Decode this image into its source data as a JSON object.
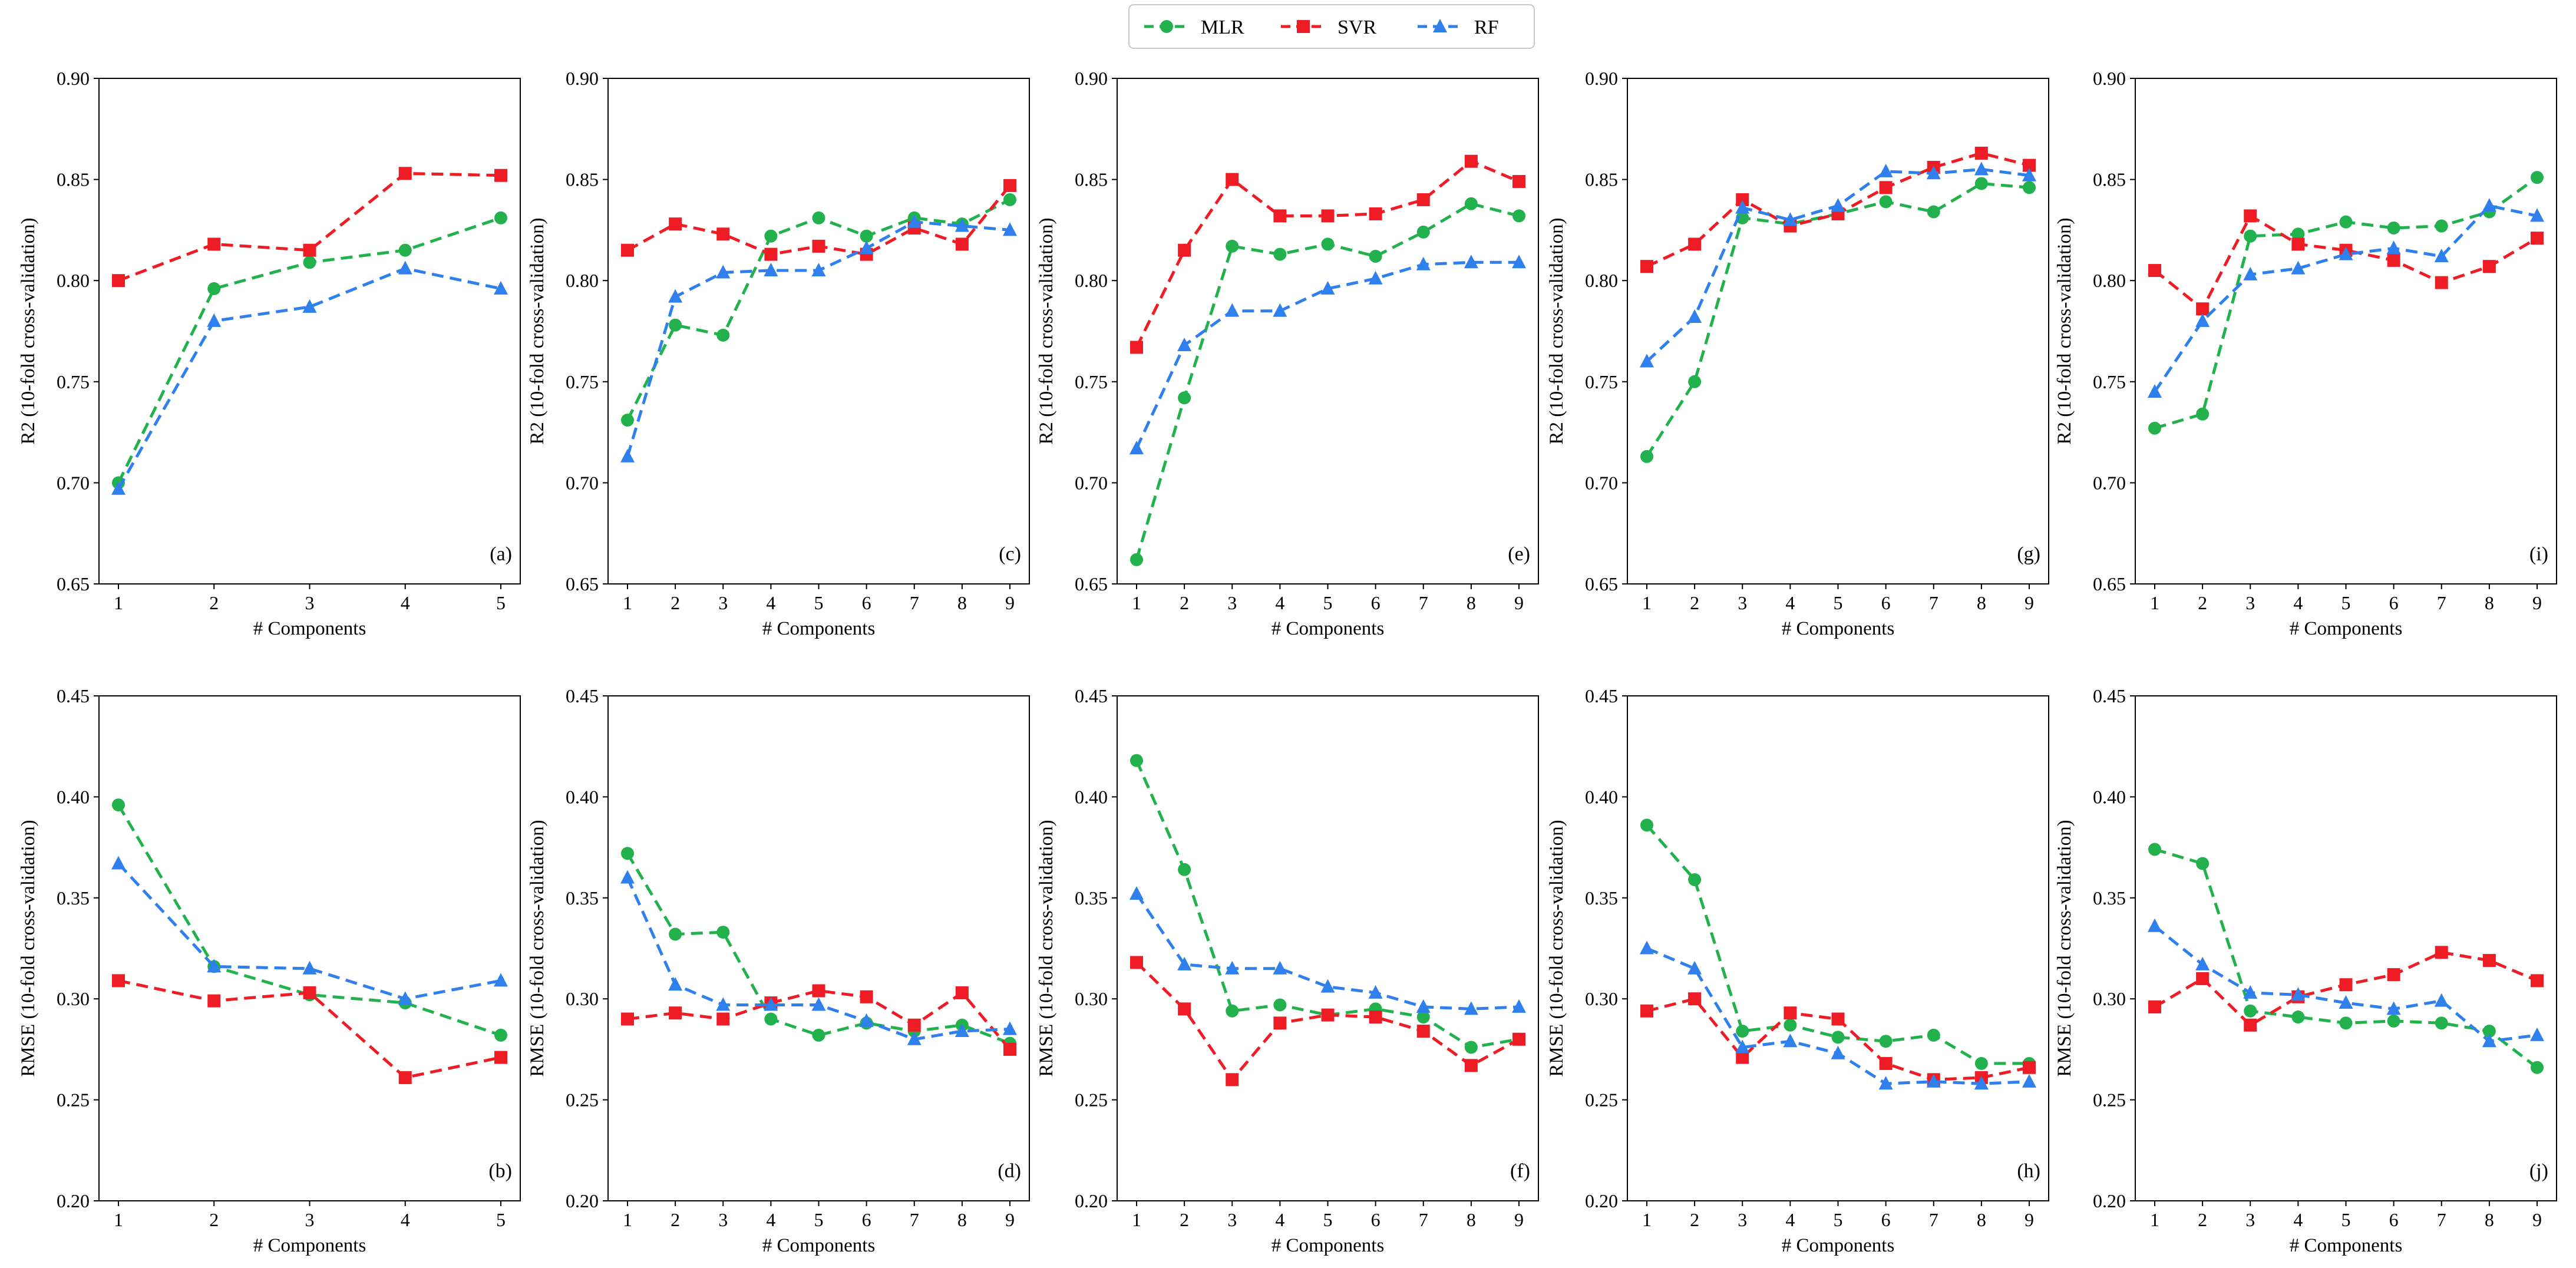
{
  "legend": [
    {
      "name": "MLR",
      "color": "#22b14c",
      "marker": "circle"
    },
    {
      "name": "SVR",
      "color": "#ee1c24",
      "marker": "square"
    },
    {
      "name": "RF",
      "color": "#2f80ed",
      "marker": "triangle"
    }
  ],
  "chart_data": [
    {
      "type": "line",
      "panel": "(a)",
      "xlabel": "# Components",
      "ylabel": "R2 (10-fold cross-validation)",
      "x": [
        1,
        2,
        3,
        4,
        5
      ],
      "ylim": [
        0.65,
        0.9
      ],
      "yticks": [
        "0.65",
        "0.70",
        "0.75",
        "0.80",
        "0.85",
        "0.90"
      ],
      "series": [
        {
          "name": "MLR",
          "values": [
            0.7,
            0.796,
            0.809,
            0.815,
            0.831
          ]
        },
        {
          "name": "SVR",
          "values": [
            0.8,
            0.818,
            0.815,
            0.853,
            0.852
          ]
        },
        {
          "name": "RF",
          "values": [
            0.697,
            0.78,
            0.787,
            0.806,
            0.796
          ]
        }
      ]
    },
    {
      "type": "line",
      "panel": "(c)",
      "xlabel": "# Components",
      "ylabel": "R2 (10-fold cross-validation)",
      "x": [
        1,
        2,
        3,
        4,
        5,
        6,
        7,
        8,
        9
      ],
      "ylim": [
        0.65,
        0.9
      ],
      "yticks": [
        "0.65",
        "0.70",
        "0.75",
        "0.80",
        "0.85",
        "0.90"
      ],
      "series": [
        {
          "name": "MLR",
          "values": [
            0.731,
            0.778,
            0.773,
            0.822,
            0.831,
            0.822,
            0.831,
            0.828,
            0.84
          ]
        },
        {
          "name": "SVR",
          "values": [
            0.815,
            0.828,
            0.823,
            0.813,
            0.817,
            0.813,
            0.826,
            0.818,
            0.847
          ]
        },
        {
          "name": "RF",
          "values": [
            0.713,
            0.792,
            0.804,
            0.805,
            0.805,
            0.816,
            0.829,
            0.827,
            0.825
          ]
        }
      ]
    },
    {
      "type": "line",
      "panel": "(e)",
      "xlabel": "# Components",
      "ylabel": "R2 (10-fold cross-validation)",
      "x": [
        1,
        2,
        3,
        4,
        5,
        6,
        7,
        8,
        9
      ],
      "ylim": [
        0.65,
        0.9
      ],
      "yticks": [
        "0.65",
        "0.70",
        "0.75",
        "0.80",
        "0.85",
        "0.90"
      ],
      "series": [
        {
          "name": "MLR",
          "values": [
            0.662,
            0.742,
            0.817,
            0.813,
            0.818,
            0.812,
            0.824,
            0.838,
            0.832
          ]
        },
        {
          "name": "SVR",
          "values": [
            0.767,
            0.815,
            0.85,
            0.832,
            0.832,
            0.833,
            0.84,
            0.859,
            0.849
          ]
        },
        {
          "name": "RF",
          "values": [
            0.717,
            0.768,
            0.785,
            0.785,
            0.796,
            0.801,
            0.808,
            0.809,
            0.809
          ]
        }
      ]
    },
    {
      "type": "line",
      "panel": "(g)",
      "xlabel": "# Components",
      "ylabel": "R2 (10-fold cross-validation)",
      "x": [
        1,
        2,
        3,
        4,
        5,
        6,
        7,
        8,
        9
      ],
      "ylim": [
        0.65,
        0.9
      ],
      "yticks": [
        "0.65",
        "0.70",
        "0.75",
        "0.80",
        "0.85",
        "0.90"
      ],
      "series": [
        {
          "name": "MLR",
          "values": [
            0.713,
            0.75,
            0.831,
            0.828,
            0.833,
            0.839,
            0.834,
            0.848,
            0.846
          ]
        },
        {
          "name": "SVR",
          "values": [
            0.807,
            0.818,
            0.84,
            0.827,
            0.833,
            0.846,
            0.856,
            0.863,
            0.857
          ]
        },
        {
          "name": "RF",
          "values": [
            0.76,
            0.782,
            0.836,
            0.83,
            0.837,
            0.854,
            0.853,
            0.855,
            0.852
          ]
        }
      ]
    },
    {
      "type": "line",
      "panel": "(i)",
      "xlabel": "# Components",
      "ylabel": "R2 (10-fold cross-validation)",
      "x": [
        1,
        2,
        3,
        4,
        5,
        6,
        7,
        8,
        9
      ],
      "ylim": [
        0.65,
        0.9
      ],
      "yticks": [
        "0.65",
        "0.70",
        "0.75",
        "0.80",
        "0.85",
        "0.90"
      ],
      "series": [
        {
          "name": "MLR",
          "values": [
            0.727,
            0.734,
            0.822,
            0.823,
            0.829,
            0.826,
            0.827,
            0.834,
            0.851
          ]
        },
        {
          "name": "SVR",
          "values": [
            0.805,
            0.786,
            0.832,
            0.818,
            0.815,
            0.81,
            0.799,
            0.807,
            0.821
          ]
        },
        {
          "name": "RF",
          "values": [
            0.745,
            0.78,
            0.803,
            0.806,
            0.813,
            0.816,
            0.812,
            0.837,
            0.832
          ]
        }
      ]
    },
    {
      "type": "line",
      "panel": "(b)",
      "xlabel": "# Components",
      "ylabel": "RMSE (10-fold cross-validation)",
      "x": [
        1,
        2,
        3,
        4,
        5
      ],
      "ylim": [
        0.2,
        0.45
      ],
      "yticks": [
        "0.20",
        "0.25",
        "0.30",
        "0.35",
        "0.40",
        "0.45"
      ],
      "series": [
        {
          "name": "MLR",
          "values": [
            0.396,
            0.316,
            0.302,
            0.298,
            0.282
          ]
        },
        {
          "name": "SVR",
          "values": [
            0.309,
            0.299,
            0.303,
            0.261,
            0.271
          ]
        },
        {
          "name": "RF",
          "values": [
            0.367,
            0.316,
            0.315,
            0.3,
            0.309
          ]
        }
      ]
    },
    {
      "type": "line",
      "panel": "(d)",
      "xlabel": "# Components",
      "ylabel": "RMSE (10-fold cross-validation)",
      "x": [
        1,
        2,
        3,
        4,
        5,
        6,
        7,
        8,
        9
      ],
      "ylim": [
        0.2,
        0.45
      ],
      "yticks": [
        "0.20",
        "0.25",
        "0.30",
        "0.35",
        "0.40",
        "0.45"
      ],
      "series": [
        {
          "name": "MLR",
          "values": [
            0.372,
            0.332,
            0.333,
            0.29,
            0.282,
            0.288,
            0.284,
            0.287,
            0.278
          ]
        },
        {
          "name": "SVR",
          "values": [
            0.29,
            0.293,
            0.29,
            0.298,
            0.304,
            0.301,
            0.287,
            0.303,
            0.275
          ]
        },
        {
          "name": "RF",
          "values": [
            0.36,
            0.307,
            0.297,
            0.297,
            0.297,
            0.289,
            0.28,
            0.284,
            0.285
          ]
        }
      ]
    },
    {
      "type": "line",
      "panel": "(f)",
      "xlabel": "# Components",
      "ylabel": "RMSE (10-fold cross-validation)",
      "x": [
        1,
        2,
        3,
        4,
        5,
        6,
        7,
        8,
        9
      ],
      "ylim": [
        0.2,
        0.45
      ],
      "yticks": [
        "0.20",
        "0.25",
        "0.30",
        "0.35",
        "0.40",
        "0.45"
      ],
      "series": [
        {
          "name": "MLR",
          "values": [
            0.418,
            0.364,
            0.294,
            0.297,
            0.292,
            0.295,
            0.291,
            0.276,
            0.28
          ]
        },
        {
          "name": "SVR",
          "values": [
            0.318,
            0.295,
            0.26,
            0.288,
            0.292,
            0.291,
            0.284,
            0.267,
            0.28
          ]
        },
        {
          "name": "RF",
          "values": [
            0.352,
            0.317,
            0.315,
            0.315,
            0.306,
            0.303,
            0.296,
            0.295,
            0.296
          ]
        }
      ]
    },
    {
      "type": "line",
      "panel": "(h)",
      "xlabel": "# Components",
      "ylabel": "RMSE (10-fold cross-validation)",
      "x": [
        1,
        2,
        3,
        4,
        5,
        6,
        7,
        8,
        9
      ],
      "ylim": [
        0.2,
        0.45
      ],
      "yticks": [
        "0.20",
        "0.25",
        "0.30",
        "0.35",
        "0.40",
        "0.45"
      ],
      "series": [
        {
          "name": "MLR",
          "values": [
            0.386,
            0.359,
            0.284,
            0.287,
            0.281,
            0.279,
            0.282,
            0.268,
            0.268
          ]
        },
        {
          "name": "SVR",
          "values": [
            0.294,
            0.3,
            0.271,
            0.293,
            0.29,
            0.268,
            0.26,
            0.261,
            0.266
          ]
        },
        {
          "name": "RF",
          "values": [
            0.325,
            0.315,
            0.276,
            0.279,
            0.273,
            0.258,
            0.259,
            0.258,
            0.259
          ]
        }
      ]
    },
    {
      "type": "line",
      "panel": "(j)",
      "xlabel": "# Components",
      "ylabel": "RMSE (10-fold cross-validation)",
      "x": [
        1,
        2,
        3,
        4,
        5,
        6,
        7,
        8,
        9
      ],
      "ylim": [
        0.2,
        0.45
      ],
      "yticks": [
        "0.20",
        "0.25",
        "0.30",
        "0.35",
        "0.40",
        "0.45"
      ],
      "series": [
        {
          "name": "MLR",
          "values": [
            0.374,
            0.367,
            0.294,
            0.291,
            0.288,
            0.289,
            0.288,
            0.284,
            0.266
          ]
        },
        {
          "name": "SVR",
          "values": [
            0.296,
            0.31,
            0.287,
            0.301,
            0.307,
            0.312,
            0.323,
            0.319,
            0.309
          ]
        },
        {
          "name": "RF",
          "values": [
            0.336,
            0.317,
            0.303,
            0.302,
            0.298,
            0.295,
            0.299,
            0.279,
            0.282
          ]
        }
      ]
    }
  ]
}
